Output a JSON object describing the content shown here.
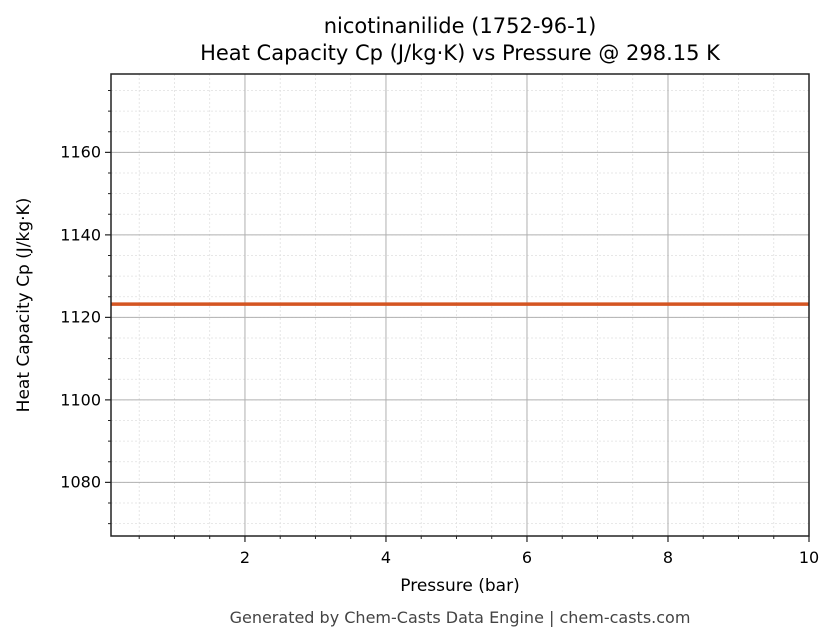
{
  "title": {
    "line1": "nicotinanilide (1752-96-1)",
    "line2": "Heat Capacity Cp (J/kg·K) vs Pressure @ 298.15 K"
  },
  "footer": "Generated by Chem-Casts Data Engine | chem-casts.com",
  "colors": {
    "series": "#d45522",
    "major_grid": "#b0b0b0",
    "minor_grid": "#e0e0e0",
    "axis": "#222222"
  },
  "chart_data": {
    "type": "line",
    "title": "nicotinanilide (1752-96-1) — Heat Capacity Cp (J/kg·K) vs Pressure @ 298.15 K",
    "xlabel": "Pressure (bar)",
    "ylabel": "Heat Capacity Cp (J/kg·K)",
    "xlim": [
      0.1,
      10
    ],
    "ylim": [
      1067,
      1179
    ],
    "x_ticks": [
      2,
      4,
      6,
      8,
      10
    ],
    "y_ticks": [
      1080,
      1100,
      1120,
      1140,
      1160
    ],
    "grid": {
      "major": true,
      "minor": true
    },
    "legend": null,
    "series": [
      {
        "name": "Cp",
        "x": [
          0.1,
          10
        ],
        "values": [
          1123.2,
          1123.2
        ]
      }
    ]
  }
}
